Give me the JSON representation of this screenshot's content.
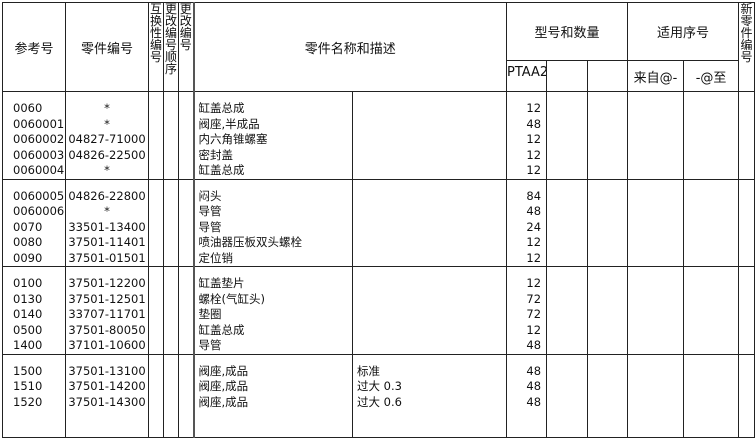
{
  "header": {
    "ref_no": "参考号",
    "part_no": "零件编号",
    "interchange_no": "互换性编号",
    "change_no_seq": "更改编号顺序",
    "change_no": "更改编号",
    "name_desc": "零件名称和描述",
    "model_qty": "型号和数量",
    "model_1": "PTAA2",
    "applicable_serial": "适用序号",
    "from": "来自@-",
    "to": "-@至",
    "new_part_no": "新零件编号"
  },
  "groups": [
    {
      "rows": [
        {
          "ref": "0060",
          "part": "*",
          "name": "缸盖总成",
          "desc": "",
          "qty": "12"
        },
        {
          "ref": "0060001",
          "part": "*",
          "name": "阀座,半成品",
          "desc": "",
          "qty": "48"
        },
        {
          "ref": "0060002",
          "part": "04827-71000",
          "name": "内六角锥螺塞",
          "desc": "",
          "qty": "12"
        },
        {
          "ref": "0060003",
          "part": "04826-22500",
          "name": "密封盖",
          "desc": "",
          "qty": "12"
        },
        {
          "ref": "0060004",
          "part": "*",
          "name": "缸盖总成",
          "desc": "",
          "qty": "12"
        }
      ]
    },
    {
      "rows": [
        {
          "ref": "0060005",
          "part": "04826-22800",
          "name": "闷头",
          "desc": "",
          "qty": "84"
        },
        {
          "ref": "0060006",
          "part": "*",
          "name": "导管",
          "desc": "",
          "qty": "48"
        },
        {
          "ref": "0070",
          "part": "33501-13400",
          "name": "导管",
          "desc": "",
          "qty": "24"
        },
        {
          "ref": "0080",
          "part": "37501-11401",
          "name": "喷油器压板双头螺栓",
          "desc": "",
          "qty": "12"
        },
        {
          "ref": "0090",
          "part": "37501-01501",
          "name": "定位销",
          "desc": "",
          "qty": "12"
        }
      ]
    },
    {
      "rows": [
        {
          "ref": "0100",
          "part": "37501-12200",
          "name": "缸盖垫片",
          "desc": "",
          "qty": "12"
        },
        {
          "ref": "0130",
          "part": "37501-12501",
          "name": "螺栓(气缸头)",
          "desc": "",
          "qty": "72"
        },
        {
          "ref": "0140",
          "part": "33707-11701",
          "name": "垫圈",
          "desc": "",
          "qty": "72"
        },
        {
          "ref": "0500",
          "part": "37501-80050",
          "name": "缸盖总成",
          "desc": "",
          "qty": "12"
        },
        {
          "ref": "1400",
          "part": "37101-10600",
          "name": "导管",
          "desc": "",
          "qty": "48"
        }
      ]
    },
    {
      "rows": [
        {
          "ref": "1500",
          "part": "37501-13100",
          "name": "阀座,成品",
          "desc": "标准",
          "qty": "48"
        },
        {
          "ref": "1510",
          "part": "37501-14200",
          "name": "阀座,成品",
          "desc": "过大 0.3",
          "qty": "48"
        },
        {
          "ref": "1520",
          "part": "37501-14300",
          "name": "阀座,成品",
          "desc": "过大 0.6",
          "qty": "48"
        }
      ]
    }
  ]
}
